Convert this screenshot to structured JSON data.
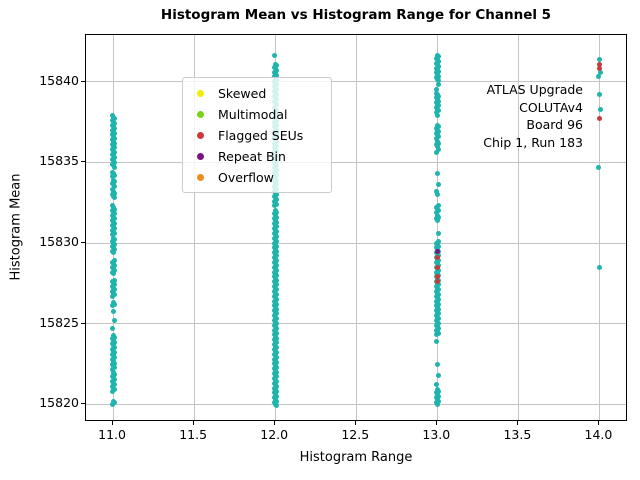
{
  "figure": {
    "title": "Histogram Mean vs Histogram Range for Channel 5",
    "xlabel": "Histogram Range",
    "ylabel": "Histogram Mean",
    "annotation_lines": [
      "ATLAS Upgrade",
      "COLUTAv4",
      "Board 96",
      "Chip 1, Run 183"
    ]
  },
  "legend": {
    "items": [
      {
        "label": "Skewed",
        "color": "#f0ee08"
      },
      {
        "label": "Multimodal",
        "color": "#77d412"
      },
      {
        "label": "Flagged SEUs",
        "color": "#c93a3c"
      },
      {
        "label": "Repeat Bin",
        "color": "#7a1580"
      },
      {
        "label": "Overflow",
        "color": "#f08c1e"
      }
    ]
  },
  "chart_data": {
    "type": "scatter",
    "title": "Histogram Mean vs Histogram Range for Channel 5",
    "xlabel": "Histogram Range",
    "ylabel": "Histogram Mean",
    "xlim": [
      10.833,
      14.176
    ],
    "ylim": [
      15818.9,
      15842.9
    ],
    "xticks": [
      11.0,
      11.5,
      12.0,
      12.5,
      13.0,
      13.5,
      14.0
    ],
    "yticks": [
      15840,
      15835,
      15830,
      15825,
      15820
    ],
    "grid": true,
    "colors": {
      "normal": "#1fb4ac",
      "flagged_seus": "#c93a3c",
      "repeat_bin": "#7a1580",
      "skewed": "#f0ee08",
      "multimodal": "#77d412",
      "overflow": "#f08c1e",
      "grid": "#c4c4c4",
      "spine": "#000000"
    },
    "dense_step": 0.1,
    "series": [
      {
        "name": "normal",
        "color": "#1fb4ac",
        "strips": [
          {
            "x": 11,
            "segments": [
              [
                15837.9,
                15834.7
              ],
              [
                15834.4,
                15834.1
              ],
              [
                15833.9,
                15833.5
              ],
              [
                15833.3,
                15832.8
              ],
              [
                15832.3,
                15831.9
              ],
              [
                15831.8,
                15830.5
              ],
              [
                15830.3,
                15829.4
              ],
              [
                15828.9,
                15828.1
              ],
              [
                15827.7,
                15826.7
              ],
              [
                15826.3,
                15826.05
              ],
              [
                15824.25,
                15823.55
              ],
              [
                15823.4,
                15822.9
              ],
              [
                15822.75,
                15822.15
              ],
              [
                15821.95,
                15821.5
              ],
              [
                15821.4,
                15820.8
              ],
              [
                15820.2,
                15820.0
              ]
            ],
            "points": [
              15825.75,
              15825.2,
              15824.7
            ]
          },
          {
            "x": 12,
            "segments": [
              [
                15841.1,
                15838.55
              ],
              [
                15838.4,
                15836.6
              ],
              [
                15836.4,
                15832.25
              ],
              [
                15832.0,
                15819.85
              ]
            ],
            "points": [
              15841.65
            ]
          },
          {
            "x": 13,
            "segments": [
              [
                15841.65,
                15840.0
              ],
              [
                15839.3,
                15838.6
              ],
              [
                15838.5,
                15838.1
              ],
              [
                15837.3,
                15836.5
              ],
              [
                15836.3,
                15836.0
              ],
              [
                15832.3,
                15831.9
              ],
              [
                15831.7,
                15831.35
              ],
              [
                15830.1,
                15824.3
              ],
              [
                15820.9,
                15820.0
              ]
            ],
            "points": [
              15839.8,
              15839.5,
              15837.9,
              15835.8,
              15835.6,
              15834.3,
              15833.6,
              15833.2,
              15833.0,
              15830.6,
              15823.9,
              15822.45,
              15821.8,
              15821.25
            ]
          },
          {
            "x": 14,
            "segments": [],
            "points": [
              15841.4,
              15840.6,
              15840.35,
              15839.2,
              15838.3,
              15834.7,
              15828.5
            ]
          }
        ]
      },
      {
        "name": "Flagged SEUs",
        "color": "#c93a3c",
        "markers": [
          {
            "x": 13,
            "y": 15829.1
          },
          {
            "x": 13,
            "y": 15828.5
          },
          {
            "x": 13,
            "y": 15827.9
          },
          {
            "x": 13,
            "y": 15827.6
          },
          {
            "x": 14,
            "y": 15841.05
          },
          {
            "x": 14,
            "y": 15840.85
          },
          {
            "x": 14,
            "y": 15837.75
          }
        ]
      },
      {
        "name": "Repeat Bin",
        "color": "#7a1580",
        "markers": [
          {
            "x": 13,
            "y": 15829.45
          }
        ]
      },
      {
        "name": "Skewed",
        "color": "#f0ee08",
        "markers": []
      },
      {
        "name": "Multimodal",
        "color": "#77d412",
        "markers": []
      },
      {
        "name": "Overflow",
        "color": "#f08c1e",
        "markers": []
      }
    ]
  }
}
